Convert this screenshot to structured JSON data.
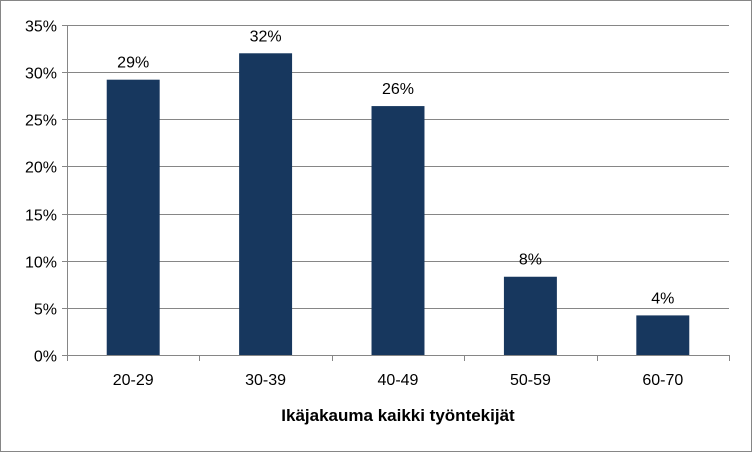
{
  "chart_data": {
    "type": "bar",
    "categories": [
      "20-29",
      "30-39",
      "40-49",
      "50-59",
      "60-70"
    ],
    "values": [
      29.2,
      32.0,
      26.4,
      8.3,
      4.2
    ],
    "data_labels": [
      "29%",
      "32%",
      "26%",
      "8%",
      "4%"
    ],
    "xlabel": "Ikäjakauma kaikki työntekijät",
    "ylabel": "",
    "ylim": [
      0,
      35
    ],
    "yticks": [
      0,
      5,
      10,
      15,
      20,
      25,
      30,
      35
    ],
    "ytick_labels": [
      "0%",
      "5%",
      "10%",
      "15%",
      "20%",
      "25%",
      "30%",
      "35%"
    ],
    "grid": true,
    "legend": "none",
    "bar_color": "#17375e",
    "grid_color": "#868686"
  }
}
